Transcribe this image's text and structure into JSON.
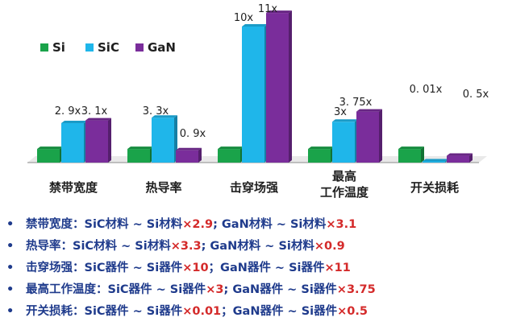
{
  "chart_data": {
    "type": "bar",
    "categories": [
      [
        "禁带宽度"
      ],
      [
        "热导率"
      ],
      [
        "击穿场强"
      ],
      [
        "最高",
        "工作温度"
      ],
      [
        "开关损耗"
      ]
    ],
    "series": [
      {
        "name": "Si",
        "color": "#1aa34a",
        "values": [
          1,
          1,
          1,
          1,
          1
        ]
      },
      {
        "name": "SiC",
        "color": "#1fb6ea",
        "values": [
          2.9,
          3.3,
          10,
          3,
          0.01
        ]
      },
      {
        "name": "GaN",
        "color": "#7a2d9b",
        "values": [
          3.1,
          0.9,
          11,
          3.75,
          0.5
        ]
      }
    ],
    "data_labels": {
      "SiC": [
        "2. 9x",
        "3. 3x",
        "10x",
        "3x",
        "0. 01x"
      ],
      "GaN": [
        "3. 1x",
        "0. 9x",
        "11x",
        "3. 75x",
        "0. 5x"
      ]
    },
    "legend_position": "top-left",
    "grid": false
  },
  "notes": [
    {
      "bullet": "•",
      "parts": [
        {
          "text": "禁带宽度：SiC材料 ~ Si材料",
          "mult": false
        },
        {
          "text": "×2.9",
          "mult": true
        },
        {
          "text": "; GaN材料 ~ Si材料",
          "mult": false
        },
        {
          "text": "×3.1",
          "mult": true
        }
      ]
    },
    {
      "bullet": "•",
      "parts": [
        {
          "text": "热导率：SiC材料 ~ Si材料",
          "mult": false
        },
        {
          "text": "×3.3",
          "mult": true
        },
        {
          "text": "; GaN材料 ~ Si材料",
          "mult": false
        },
        {
          "text": "×0.9",
          "mult": true
        }
      ]
    },
    {
      "bullet": "•",
      "parts": [
        {
          "text": "击穿场强：SiC器件 ~ Si器件",
          "mult": false
        },
        {
          "text": "×10",
          "mult": true
        },
        {
          "text": "；GaN器件 ~ Si器件",
          "mult": false
        },
        {
          "text": "×11",
          "mult": true
        }
      ]
    },
    {
      "bullet": "•",
      "parts": [
        {
          "text": "最高工作温度：SiC器件 ~ Si器件",
          "mult": false
        },
        {
          "text": "×3",
          "mult": true
        },
        {
          "text": "; GaN器件 ~ Si器件",
          "mult": false
        },
        {
          "text": "×3.75",
          "mult": true
        }
      ]
    },
    {
      "bullet": "•",
      "parts": [
        {
          "text": "开关损耗：SiC器件 ~ Si器件",
          "mult": false
        },
        {
          "text": "×0.01",
          "mult": true
        },
        {
          "text": "；GaN器件 ~ Si器件",
          "mult": false
        },
        {
          "text": "×0.5",
          "mult": true
        }
      ]
    }
  ]
}
